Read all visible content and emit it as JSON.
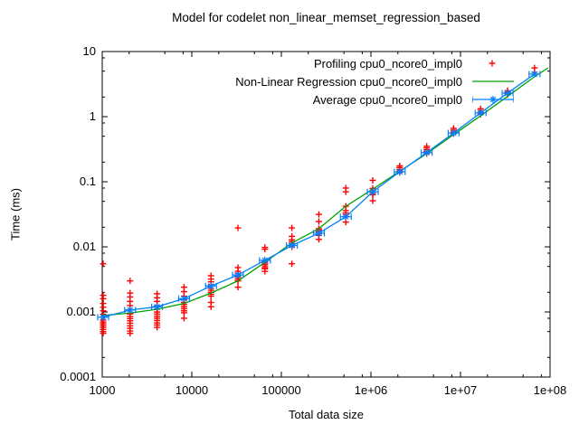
{
  "chart_data": {
    "type": "scatter",
    "title": "Model for codelet non_linear_memset_regression_based",
    "xlabel": "Total data size",
    "ylabel": "Time (ms)",
    "xscale": "log",
    "yscale": "log",
    "xlim": [
      1000,
      100000000
    ],
    "ylim": [
      0.0001,
      10
    ],
    "x_tick_labels": [
      "1000",
      "10000",
      "100000",
      "1e+06",
      "1e+07",
      "1e+08"
    ],
    "y_tick_labels": [
      "0.0001",
      "0.001",
      "0.01",
      "0.1",
      "1",
      "10"
    ],
    "minor_tick_multiples": [
      2,
      5,
      8
    ],
    "grid": false,
    "legend_position": "top-right-inside",
    "series": [
      {
        "name": "Profiling cpu0_ncore0_impl0",
        "style": "points",
        "marker": "plus",
        "color": "#ff0000",
        "columns": [
          {
            "x": 1024,
            "samples": [
              0.0055,
              0.0018,
              0.0016,
              0.00135,
              0.00118,
              0.00104,
              0.00092,
              0.00083,
              0.00075,
              0.0007,
              0.00066,
              0.00062,
              0.00058,
              0.00054,
              0.0005,
              0.00047
            ]
          },
          {
            "x": 2048,
            "samples": [
              0.003,
              0.00195,
              0.0017,
              0.00145,
              0.00125,
              0.00108,
              0.00093,
              0.00085,
              0.00079,
              0.00073,
              0.00067,
              0.00061,
              0.00056,
              0.00051,
              0.00047
            ]
          },
          {
            "x": 4096,
            "samples": [
              0.0019,
              0.00165,
              0.00145,
              0.00125,
              0.0011,
              0.001,
              0.00093,
              0.00086,
              0.0008,
              0.00074,
              0.00068,
              0.00063,
              0.00058
            ]
          },
          {
            "x": 8192,
            "samples": [
              0.0024,
              0.00205,
              0.00175,
              0.00155,
              0.0014,
              0.0013,
              0.0012,
              0.00112,
              0.00104,
              0.00097,
              0.0008
            ]
          },
          {
            "x": 16384,
            "samples": [
              0.0036,
              0.0032,
              0.0029,
              0.0026,
              0.0023,
              0.00215,
              0.002,
              0.00187,
              0.00175,
              0.0014,
              0.0012
            ]
          },
          {
            "x": 32768,
            "samples": [
              0.0195,
              0.0048,
              0.0042,
              0.0039,
              0.0036,
              0.0034,
              0.0032,
              0.003,
              0.0024
            ]
          },
          {
            "x": 65536,
            "samples": [
              0.0098,
              0.0092,
              0.006,
              0.0057,
              0.0054,
              0.0051,
              0.0048,
              0.0046,
              0.0042
            ]
          },
          {
            "x": 131072,
            "samples": [
              0.0195,
              0.0145,
              0.0128,
              0.012,
              0.0113,
              0.0106,
              0.01,
              0.0055
            ]
          },
          {
            "x": 262144,
            "samples": [
              0.0315,
              0.0245,
              0.019,
              0.018,
              0.017,
              0.016,
              0.015,
              0.013
            ]
          },
          {
            "x": 524288,
            "samples": [
              0.08,
              0.07,
              0.042,
              0.036,
              0.033,
              0.031,
              0.029,
              0.024
            ]
          },
          {
            "x": 1048576,
            "samples": [
              0.105,
              0.079,
              0.074,
              0.07,
              0.066,
              0.063,
              0.051
            ]
          },
          {
            "x": 2097152,
            "samples": [
              0.175,
              0.165,
              0.155,
              0.147,
              0.139
            ]
          },
          {
            "x": 4194304,
            "samples": [
              0.35,
              0.33,
              0.31,
              0.29,
              0.27
            ]
          },
          {
            "x": 8388608,
            "samples": [
              0.66,
              0.62,
              0.58,
              0.55
            ]
          },
          {
            "x": 16777216,
            "samples": [
              1.32,
              1.24,
              1.16,
              1.09
            ]
          },
          {
            "x": 33554432,
            "samples": [
              2.5,
              2.38,
              2.26,
              2.18
            ]
          },
          {
            "x": 67108864,
            "samples": [
              5.6,
              4.8
            ]
          }
        ]
      },
      {
        "name": "Non-Linear Regression cpu0_ncore0_impl0",
        "style": "line",
        "color": "#00a000",
        "points": [
          [
            1000,
            0.00088
          ],
          [
            2048,
            0.00096
          ],
          [
            4096,
            0.0011
          ],
          [
            8192,
            0.00135
          ],
          [
            16384,
            0.00195
          ],
          [
            32768,
            0.003
          ],
          [
            65536,
            0.0058
          ],
          [
            131072,
            0.0115
          ],
          [
            262144,
            0.019
          ],
          [
            524288,
            0.042
          ],
          [
            1048576,
            0.077
          ],
          [
            2097152,
            0.145
          ],
          [
            4194304,
            0.27
          ],
          [
            8388608,
            0.53
          ],
          [
            16777216,
            1.03
          ],
          [
            33554432,
            2.05
          ],
          [
            67108864,
            4.1
          ],
          [
            95000000,
            5.6
          ]
        ]
      },
      {
        "name": "Average cpu0_ncore0_impl0",
        "style": "line-xerrorbars-star",
        "color": "#0080ff",
        "x": [
          1024,
          2048,
          4096,
          8192,
          16384,
          32768,
          65536,
          131072,
          262144,
          524288,
          1048576,
          2097152,
          4194304,
          8388608,
          16777216,
          33554432,
          67108864
        ],
        "y": [
          0.00083,
          0.00107,
          0.0012,
          0.0016,
          0.0025,
          0.0037,
          0.0062,
          0.0105,
          0.0162,
          0.029,
          0.07,
          0.142,
          0.28,
          0.56,
          1.14,
          2.3,
          4.5
        ]
      }
    ]
  }
}
